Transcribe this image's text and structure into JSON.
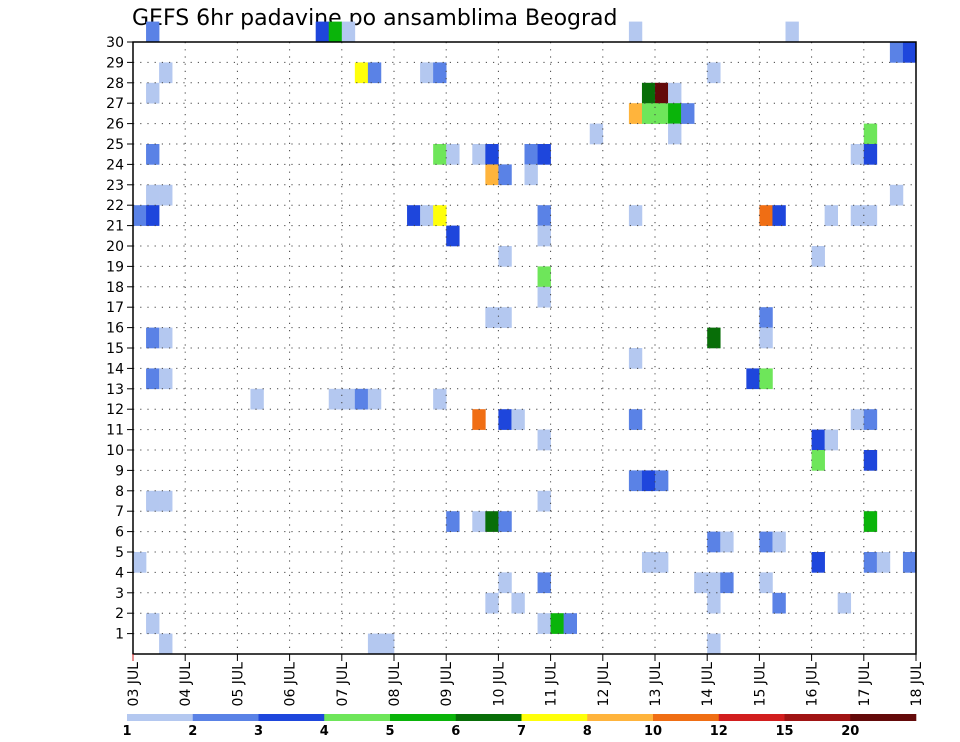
{
  "chart_data": {
    "type": "heatmap",
    "title": "GEFS 6hr padavine po ansamblima Beograd",
    "xlabel": "",
    "ylabel": "",
    "x_unit": "6-hour steps starting 03 JUL 00Z",
    "x_tick_labels": [
      "03 JUL",
      "04 JUL",
      "05 JUL",
      "06 JUL",
      "07 JUL",
      "08 JUL",
      "09 JUL",
      "10 JUL",
      "11 JUL",
      "12 JUL",
      "13 JUL",
      "14 JUL",
      "15 JUL",
      "16 JUL",
      "17 JUL",
      "18 JUL"
    ],
    "y_tick_labels": [
      "1",
      "2",
      "3",
      "4",
      "5",
      "6",
      "7",
      "8",
      "9",
      "10",
      "11",
      "12",
      "13",
      "14",
      "15",
      "16",
      "17",
      "18",
      "19",
      "20",
      "21",
      "22",
      "23",
      "24",
      "25",
      "26",
      "27",
      "28",
      "29",
      "30"
    ],
    "ylim": [
      0,
      30
    ],
    "grid": true,
    "colorbar": {
      "thresholds": [
        "1",
        "2",
        "3",
        "4",
        "5",
        "6",
        "7",
        "8",
        "10",
        "12",
        "15",
        "20"
      ],
      "colors": [
        "#b4c8f0",
        "#5a82e6",
        "#1e46dc",
        "#6ee65a",
        "#0ab40a",
        "#086e08",
        "#ffff0a",
        "#ffb43c",
        "#f06e14",
        "#d21e1e",
        "#a01414",
        "#640a0a"
      ]
    },
    "cells": [
      [
        30,
        1,
        2
      ],
      [
        30,
        14,
        3
      ],
      [
        30,
        15,
        5
      ],
      [
        30,
        16,
        1
      ],
      [
        30,
        38,
        1
      ],
      [
        30,
        50,
        1
      ],
      [
        29,
        58,
        2
      ],
      [
        29,
        59,
        3
      ],
      [
        28,
        2,
        1
      ],
      [
        28,
        17,
        7
      ],
      [
        28,
        18,
        2
      ],
      [
        28,
        22,
        1
      ],
      [
        28,
        23,
        2
      ],
      [
        28,
        44,
        1
      ],
      [
        27,
        1,
        1
      ],
      [
        27,
        39,
        6
      ],
      [
        27,
        40,
        12
      ],
      [
        27,
        41,
        1
      ],
      [
        26,
        38,
        8
      ],
      [
        26,
        39,
        4
      ],
      [
        26,
        40,
        4
      ],
      [
        26,
        41,
        5
      ],
      [
        26,
        42,
        2
      ],
      [
        25,
        35,
        1
      ],
      [
        25,
        41,
        1
      ],
      [
        25,
        56,
        4
      ],
      [
        24,
        1,
        2
      ],
      [
        24,
        23,
        4
      ],
      [
        24,
        24,
        1
      ],
      [
        24,
        26,
        1
      ],
      [
        24,
        27,
        3
      ],
      [
        24,
        30,
        2
      ],
      [
        24,
        31,
        3
      ],
      [
        24,
        55,
        1
      ],
      [
        24,
        56,
        3
      ],
      [
        23,
        27,
        8
      ],
      [
        23,
        28,
        2
      ],
      [
        23,
        30,
        1
      ],
      [
        22,
        1,
        1
      ],
      [
        22,
        2,
        1
      ],
      [
        22,
        58,
        1
      ],
      [
        21,
        0,
        2
      ],
      [
        21,
        1,
        3
      ],
      [
        21,
        21,
        3
      ],
      [
        21,
        22,
        1
      ],
      [
        21,
        23,
        7
      ],
      [
        21,
        31,
        2
      ],
      [
        21,
        38,
        1
      ],
      [
        21,
        48,
        9
      ],
      [
        21,
        49,
        3
      ],
      [
        21,
        53,
        1
      ],
      [
        21,
        55,
        1
      ],
      [
        21,
        56,
        1
      ],
      [
        21,
        60,
        6
      ],
      [
        20,
        24,
        3
      ],
      [
        20,
        31,
        1
      ],
      [
        19,
        28,
        1
      ],
      [
        19,
        52,
        1
      ],
      [
        18,
        31,
        4
      ],
      [
        17,
        31,
        1
      ],
      [
        16,
        27,
        1
      ],
      [
        16,
        28,
        1
      ],
      [
        16,
        48,
        2
      ],
      [
        15,
        1,
        2
      ],
      [
        15,
        2,
        1
      ],
      [
        15,
        44,
        6
      ],
      [
        15,
        48,
        1
      ],
      [
        14,
        38,
        1
      ],
      [
        13,
        1,
        2
      ],
      [
        13,
        2,
        1
      ],
      [
        13,
        47,
        3
      ],
      [
        13,
        48,
        4
      ],
      [
        12,
        9,
        1
      ],
      [
        12,
        15,
        1
      ],
      [
        12,
        16,
        1
      ],
      [
        12,
        17,
        2
      ],
      [
        12,
        18,
        1
      ],
      [
        12,
        23,
        1
      ],
      [
        11,
        26,
        9
      ],
      [
        11,
        28,
        3
      ],
      [
        11,
        29,
        1
      ],
      [
        11,
        38,
        2
      ],
      [
        11,
        55,
        1
      ],
      [
        11,
        56,
        2
      ],
      [
        10,
        31,
        1
      ],
      [
        10,
        52,
        3
      ],
      [
        10,
        53,
        1
      ],
      [
        9,
        52,
        4
      ],
      [
        9,
        56,
        3
      ],
      [
        9,
        60,
        1
      ],
      [
        8,
        38,
        2
      ],
      [
        8,
        39,
        3
      ],
      [
        8,
        40,
        2
      ],
      [
        7,
        1,
        1
      ],
      [
        7,
        2,
        1
      ],
      [
        7,
        31,
        1
      ],
      [
        6,
        24,
        2
      ],
      [
        6,
        26,
        1
      ],
      [
        6,
        27,
        6
      ],
      [
        6,
        28,
        2
      ],
      [
        6,
        56,
        5
      ],
      [
        6,
        60,
        4
      ],
      [
        5,
        44,
        2
      ],
      [
        5,
        45,
        1
      ],
      [
        5,
        48,
        2
      ],
      [
        5,
        49,
        1
      ],
      [
        4,
        0,
        1
      ],
      [
        4,
        39,
        1
      ],
      [
        4,
        40,
        1
      ],
      [
        4,
        52,
        3
      ],
      [
        4,
        56,
        2
      ],
      [
        4,
        57,
        1
      ],
      [
        4,
        59,
        2
      ],
      [
        4,
        60,
        6
      ],
      [
        3,
        28,
        1
      ],
      [
        3,
        31,
        2
      ],
      [
        3,
        43,
        1
      ],
      [
        3,
        44,
        1
      ],
      [
        3,
        45,
        2
      ],
      [
        3,
        48,
        1
      ],
      [
        2,
        27,
        1
      ],
      [
        2,
        29,
        1
      ],
      [
        2,
        44,
        1
      ],
      [
        2,
        49,
        2
      ],
      [
        2,
        54,
        1
      ],
      [
        1,
        1,
        1
      ],
      [
        1,
        31,
        1
      ],
      [
        1,
        32,
        5
      ],
      [
        1,
        33,
        2
      ],
      [
        0,
        2,
        1
      ],
      [
        0,
        18,
        1
      ],
      [
        0,
        19,
        1
      ],
      [
        0,
        44,
        1
      ]
    ]
  }
}
